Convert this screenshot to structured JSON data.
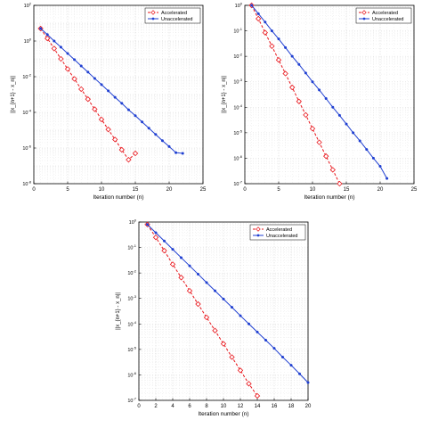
{
  "colors": {
    "accelerated": "#e8141a",
    "unaccelerated": "#1f3fd1",
    "grid": "#d9d9d9",
    "axis": "#000000"
  },
  "chart_data": [
    {
      "type": "line",
      "xlabel": "Iteration number (n)",
      "ylabel": "||x_{n+1} - x_n||",
      "yscale": "log",
      "xlim": [
        0,
        25
      ],
      "ylim_exp": [
        -8,
        2
      ],
      "xticks": [
        0,
        5,
        10,
        15,
        20,
        25
      ],
      "yticks_exp": [
        -8,
        -6,
        -4,
        -2,
        0,
        2
      ],
      "grid": true,
      "legend_position": "top-right",
      "series": [
        {
          "name": "Accelerated",
          "marker": "diamond",
          "line": "dashed",
          "x": [
            1,
            2,
            3,
            4,
            5,
            6,
            7,
            8,
            9,
            10,
            11,
            12,
            13,
            14,
            15
          ],
          "y": [
            5.0,
            1.4,
            0.38,
            0.1,
            0.027,
            0.0075,
            0.002,
            0.00055,
            0.00015,
            4e-05,
            1.1e-05,
            3e-06,
            8e-07,
            2.2e-07,
            5e-07
          ]
        },
        {
          "name": "Unaccelerated",
          "marker": "dot",
          "line": "solid",
          "x": [
            1,
            2,
            3,
            4,
            5,
            6,
            7,
            8,
            9,
            10,
            11,
            12,
            13,
            14,
            15,
            16,
            17,
            18,
            19,
            20,
            21,
            22
          ],
          "y": [
            5.0,
            2.3,
            1.0,
            0.45,
            0.2,
            0.09,
            0.04,
            0.018,
            0.008,
            0.0036,
            0.0016,
            0.0007,
            0.00032,
            0.00014,
            6.5e-05,
            2.9e-05,
            1.3e-05,
            5.8e-06,
            2.6e-06,
            1.2e-06,
            5.5e-07,
            5e-07
          ]
        }
      ]
    },
    {
      "type": "line",
      "xlabel": "Iteration number (n)",
      "ylabel": "||x_{n+1} - x_n||",
      "yscale": "log",
      "xlim": [
        0,
        25
      ],
      "ylim_exp": [
        -7,
        0
      ],
      "xticks": [
        0,
        5,
        10,
        15,
        20,
        25
      ],
      "yticks_exp": [
        -7,
        -6,
        -5,
        -4,
        -3,
        -2,
        -1,
        0
      ],
      "grid": true,
      "legend_position": "top-right",
      "series": [
        {
          "name": "Accelerated",
          "marker": "diamond",
          "line": "dashed",
          "x": [
            1,
            2,
            3,
            4,
            5,
            6,
            7,
            8,
            9,
            10,
            11,
            12,
            13,
            14
          ],
          "y": [
            1.0,
            0.3,
            0.085,
            0.025,
            0.0072,
            0.0021,
            0.0006,
            0.00017,
            5e-05,
            1.45e-05,
            4.2e-06,
            1.2e-06,
            3.5e-07,
            1e-07
          ]
        },
        {
          "name": "Unaccelerated",
          "marker": "dot",
          "line": "solid",
          "x": [
            1,
            2,
            3,
            4,
            5,
            6,
            7,
            8,
            9,
            10,
            11,
            12,
            13,
            14,
            15,
            16,
            17,
            18,
            19,
            20,
            21
          ],
          "y": [
            1.0,
            0.47,
            0.22,
            0.1,
            0.048,
            0.022,
            0.01,
            0.0048,
            0.0022,
            0.001,
            0.00048,
            0.00022,
            0.0001,
            4.8e-05,
            2.2e-05,
            1e-05,
            4.8e-06,
            2.2e-06,
            1e-06,
            4.8e-07,
            1.6e-07
          ]
        }
      ]
    },
    {
      "type": "line",
      "xlabel": "Iteration number (n)",
      "ylabel": "||x_{n+1} - x_n||",
      "yscale": "log",
      "xlim": [
        0,
        20
      ],
      "ylim_exp": [
        -7,
        0
      ],
      "xticks": [
        0,
        2,
        4,
        6,
        8,
        10,
        12,
        14,
        16,
        18,
        20
      ],
      "yticks_exp": [
        -7,
        -6,
        -5,
        -4,
        -3,
        -2,
        -1,
        0
      ],
      "grid": true,
      "legend_position": "top-right",
      "series": [
        {
          "name": "Accelerated",
          "marker": "diamond",
          "line": "dashed",
          "x": [
            1,
            2,
            3,
            4,
            5,
            6,
            7,
            8,
            9,
            10,
            11,
            12,
            13,
            14
          ],
          "y": [
            0.8,
            0.25,
            0.075,
            0.022,
            0.0066,
            0.002,
            0.0006,
            0.00018,
            5.5e-05,
            1.65e-05,
            5e-06,
            1.5e-06,
            4.5e-07,
            1.5e-07
          ]
        },
        {
          "name": "Unaccelerated",
          "marker": "dot",
          "line": "solid",
          "x": [
            1,
            2,
            3,
            4,
            5,
            6,
            7,
            8,
            9,
            10,
            11,
            12,
            13,
            14,
            15,
            16,
            17,
            18,
            19,
            20
          ],
          "y": [
            0.8,
            0.38,
            0.18,
            0.085,
            0.04,
            0.019,
            0.009,
            0.0042,
            0.002,
            0.00095,
            0.00045,
            0.00021,
            0.0001,
            4.8e-05,
            2.3e-05,
            1.1e-05,
            5e-06,
            2.4e-06,
            1.1e-06,
            5e-07
          ]
        }
      ]
    }
  ]
}
